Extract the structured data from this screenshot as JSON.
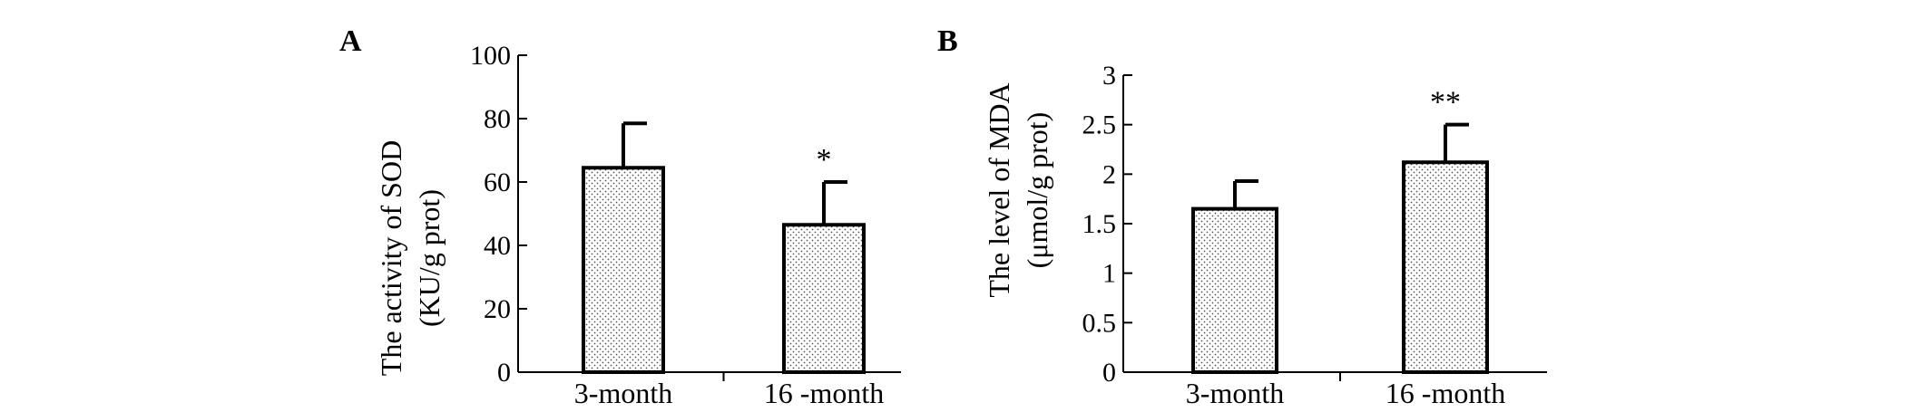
{
  "chart_data": [
    {
      "panel": "A",
      "type": "bar",
      "categories": [
        "3-month",
        "16 -month"
      ],
      "values": [
        64.5,
        46.5
      ],
      "error_upper": [
        78.5,
        60
      ],
      "significance": [
        "",
        "*"
      ],
      "ylabel_line1": "The activity of SOD",
      "ylabel_line2": "(KU/g prot)",
      "ylim": [
        0,
        100
      ],
      "yticks": [
        "0",
        "20",
        "40",
        "60",
        "80",
        "100"
      ],
      "ytick_values": [
        0,
        20,
        40,
        60,
        80,
        100
      ],
      "bar_fill": "dotted"
    },
    {
      "panel": "B",
      "type": "bar",
      "categories": [
        "3-month",
        "16 -month"
      ],
      "values": [
        1.65,
        2.12
      ],
      "error_upper": [
        1.93,
        2.5
      ],
      "significance": [
        "",
        "**"
      ],
      "ylabel_line1": "The level of MDA",
      "ylabel_line2": "(μmol/g prot)",
      "ylim": [
        0,
        3
      ],
      "yticks": [
        "0",
        "0.5",
        "1",
        "1.5",
        "2",
        "2.5",
        "3"
      ],
      "ytick_values": [
        0,
        0.5,
        1,
        1.5,
        2,
        2.5,
        3
      ],
      "bar_fill": "dotted"
    }
  ],
  "colors": {
    "ink": "#000000",
    "bar_bg": "#ffffff",
    "dot": "#555555"
  }
}
